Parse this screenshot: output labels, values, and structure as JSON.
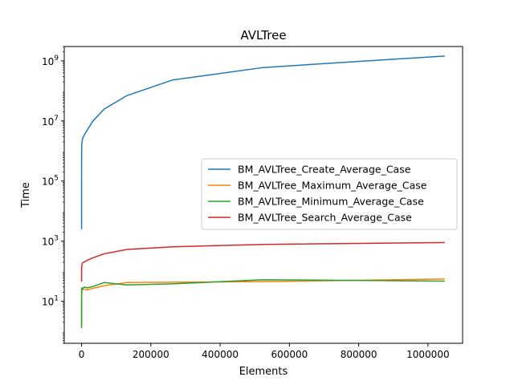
{
  "chart_data": {
    "type": "line",
    "title": "AVLTree",
    "xlabel": "Elements",
    "ylabel": "Time",
    "yscale": "log",
    "xlim": [
      -50000,
      1100000
    ],
    "ylim": [
      0.4,
      3000000000
    ],
    "legend": "center-right",
    "grid": false,
    "x_ticks": [
      0,
      200000,
      400000,
      600000,
      800000,
      1000000
    ],
    "x_tick_labels": [
      "0",
      "200000",
      "400000",
      "600000",
      "800000",
      "1000000"
    ],
    "y_ticks": [
      10,
      1000,
      100000,
      10000000,
      1000000000
    ],
    "y_tick_labels": [
      {
        "base": "10",
        "exp": "1"
      },
      {
        "base": "10",
        "exp": "3"
      },
      {
        "base": "10",
        "exp": "5"
      },
      {
        "base": "10",
        "exp": "7"
      },
      {
        "base": "10",
        "exp": "9"
      }
    ],
    "series": [
      {
        "name": "BM_AVLTree_Create_Average_Case",
        "color": "#1f77b4",
        "x": [
          1,
          2,
          4,
          8,
          16,
          32,
          64,
          128,
          256,
          512,
          1024,
          2048,
          4096,
          8192,
          16384,
          32768,
          65536,
          131072,
          262144,
          524288,
          1048576
        ],
        "y": [
          2500,
          6000,
          14000,
          30000,
          70000,
          150000,
          320000,
          700000,
          1200000,
          1600000,
          1900000,
          2300000,
          2800000,
          3500000,
          5000000,
          10000000,
          25000000,
          70000000,
          230000000,
          600000000,
          1450000000
        ]
      },
      {
        "name": "BM_AVLTree_Maximum_Average_Case",
        "color": "#ff7f0e",
        "x": [
          1,
          2,
          4,
          8,
          16,
          32,
          64,
          128,
          256,
          512,
          1024,
          2048,
          4096,
          8192,
          16384,
          32768,
          65536,
          131072,
          262144,
          524288,
          1048576
        ],
        "y": [
          1.6,
          1.8,
          2.0,
          2.3,
          2.7,
          3.5,
          5,
          9,
          14,
          20,
          25,
          27,
          26,
          25,
          24,
          27,
          33,
          42,
          43,
          45,
          55
        ]
      },
      {
        "name": "BM_AVLTree_Minimum_Average_Case",
        "color": "#2ca02c",
        "x": [
          1,
          2,
          4,
          8,
          16,
          32,
          64,
          128,
          256,
          512,
          1024,
          2048,
          4096,
          8192,
          16384,
          32768,
          65536,
          131072,
          262144,
          524288,
          1048576
        ],
        "y": [
          1.3,
          1.4,
          1.6,
          2.0,
          2.5,
          3.5,
          6,
          12,
          20,
          28,
          26,
          24,
          27,
          30,
          28,
          31,
          42,
          35,
          38,
          52,
          47
        ]
      },
      {
        "name": "BM_AVLTree_Search_Average_Case",
        "color": "#d62728",
        "x": [
          1,
          2,
          4,
          8,
          16,
          32,
          64,
          128,
          256,
          512,
          1024,
          2048,
          4096,
          8192,
          16384,
          32768,
          65536,
          131072,
          262144,
          524288,
          1048576
        ],
        "y": [
          45,
          50,
          55,
          60,
          70,
          80,
          95,
          110,
          130,
          150,
          160,
          180,
          195,
          205,
          230,
          280,
          380,
          530,
          650,
          780,
          900
        ]
      }
    ]
  }
}
